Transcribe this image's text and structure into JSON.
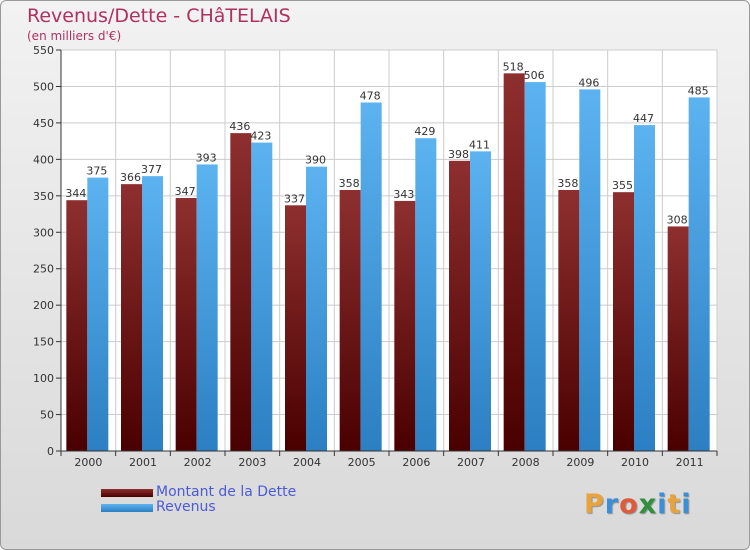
{
  "title": "Revenus/Dette - CHâTELAIS",
  "subtitle": "(en milliers d'€)",
  "colors": {
    "title": "#b03060",
    "series_1": "#7a1a1a",
    "series_2": "#4aa4e6"
  },
  "logo": {
    "text": "Proxiti",
    "letter_colors": [
      "#e8a33d",
      "#3b8fd6",
      "#e05a3a",
      "#2f8f3f",
      "#3b8fd6",
      "#e8a33d",
      "#3b8fd6"
    ]
  },
  "chart_data": {
    "type": "bar",
    "title": "Revenus/Dette - CHâTELAIS",
    "subtitle": "(en milliers d'€)",
    "categories": [
      "2000",
      "2001",
      "2002",
      "2003",
      "2004",
      "2005",
      "2006",
      "2007",
      "2008",
      "2009",
      "2010",
      "2011"
    ],
    "series": [
      {
        "name": "Montant de la Dette",
        "values": [
          344,
          366,
          347,
          436,
          337,
          358,
          343,
          398,
          518,
          358,
          355,
          308
        ]
      },
      {
        "name": "Revenus",
        "values": [
          375,
          377,
          393,
          423,
          390,
          478,
          429,
          411,
          506,
          496,
          447,
          485
        ]
      }
    ],
    "ylim": [
      0,
      550
    ],
    "yticks": [
      0,
      50,
      100,
      150,
      200,
      250,
      300,
      350,
      400,
      450,
      500,
      550
    ],
    "grid": true,
    "legend_position": "bottom-left",
    "data_labels": true
  }
}
